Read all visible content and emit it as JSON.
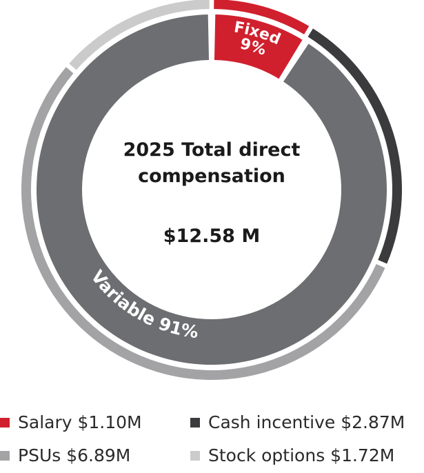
{
  "chart_data": {
    "type": "pie",
    "title_line1": "2025 Total direct",
    "title_line2": "compensation",
    "total_label": "$12.58 M",
    "outer_ring": [
      {
        "name": "Salary",
        "value": 1.1,
        "color": "#d0202e"
      },
      {
        "name": "Cash incentive",
        "value": 2.87,
        "color": "#3b3b3d"
      },
      {
        "name": "PSUs",
        "value": 6.89,
        "color": "#a3a3a5"
      },
      {
        "name": "Stock options",
        "value": 1.72,
        "color": "#cbcbcb"
      }
    ],
    "inner_ring": [
      {
        "name": "Fixed",
        "percent": 9,
        "label": "Fixed",
        "pct_label": "9%",
        "color": "#d0202e"
      },
      {
        "name": "Variable",
        "percent": 91,
        "label": "Variable 91%",
        "color": "#6d6e71"
      }
    ],
    "legend": [
      {
        "text": "Salary $1.10M",
        "color": "#d0202e"
      },
      {
        "text": "Cash incentive $2.87M",
        "color": "#3b3b3d"
      },
      {
        "text": "PSUs $6.89M",
        "color": "#a3a3a5"
      },
      {
        "text": "Stock options $1.72M",
        "color": "#cbcbcb"
      }
    ]
  }
}
